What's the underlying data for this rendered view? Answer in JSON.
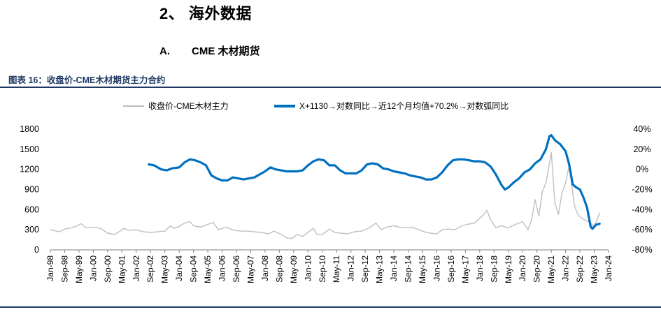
{
  "headings": {
    "section": "2、 海外数据",
    "subsection_num": "A.",
    "subsection_text": "CME 木材期货",
    "figure_title": "图表 16：收盘价-CME木材期货主力合约"
  },
  "colors": {
    "price_line": "#bfbfbf",
    "transform_line": "#0070c0",
    "axis": "#7f7f7f",
    "title_navy": "#1f3864"
  },
  "chart_data": {
    "type": "line",
    "x_type": "date",
    "x_range": [
      "1998-01",
      "2024-01"
    ],
    "x_ticks": [
      "Jan-98",
      "Sep-98",
      "May-99",
      "Jan-00",
      "Sep-00",
      "May-01",
      "Jan-02",
      "Sep-02",
      "May-03",
      "Jan-04",
      "Sep-04",
      "May-05",
      "Jan-06",
      "Sep-06",
      "May-07",
      "Jan-08",
      "Sep-08",
      "May-09",
      "Jan-10",
      "Sep-10",
      "May-11",
      "Jan-12",
      "Sep-12",
      "May-13",
      "Jan-14",
      "Sep-14",
      "May-15",
      "Jan-16",
      "Sep-16",
      "May-17",
      "Jan-18",
      "Sep-18",
      "May-19",
      "Jan-20",
      "Sep-20",
      "May-21",
      "Jan-22",
      "Sep-22",
      "May-23",
      "Jan-24"
    ],
    "y_left": {
      "ticks": [
        0,
        300,
        600,
        900,
        1200,
        1500,
        1800
      ],
      "range": [
        0,
        1800
      ]
    },
    "y_right": {
      "ticks": [
        "-80%",
        "-60%",
        "-40%",
        "-20%",
        "0%",
        "20%",
        "40%"
      ],
      "range": [
        -80,
        40
      ],
      "unit": "%"
    },
    "legend": [
      "收盘价-CME木材主力",
      "X+1130→对数同比→近12个月均值+70.2%→对数弧同比"
    ],
    "series": [
      {
        "name": "收盘价-CME木材主力",
        "axis": "left",
        "points": [
          [
            "1998-01",
            300
          ],
          [
            "1998-06",
            270
          ],
          [
            "1998-09",
            310
          ],
          [
            "1999-01",
            330
          ],
          [
            "1999-04",
            360
          ],
          [
            "1999-06",
            390
          ],
          [
            "1999-09",
            330
          ],
          [
            "2000-01",
            340
          ],
          [
            "2000-05",
            320
          ],
          [
            "2000-09",
            250
          ],
          [
            "2001-01",
            230
          ],
          [
            "2001-04",
            280
          ],
          [
            "2001-06",
            320
          ],
          [
            "2001-09",
            290
          ],
          [
            "2002-01",
            300
          ],
          [
            "2002-05",
            270
          ],
          [
            "2002-09",
            260
          ],
          [
            "2003-01",
            270
          ],
          [
            "2003-05",
            280
          ],
          [
            "2003-08",
            360
          ],
          [
            "2003-10",
            320
          ],
          [
            "2004-01",
            350
          ],
          [
            "2004-04",
            400
          ],
          [
            "2004-07",
            420
          ],
          [
            "2004-09",
            360
          ],
          [
            "2005-01",
            340
          ],
          [
            "2005-05",
            380
          ],
          [
            "2005-08",
            410
          ],
          [
            "2005-11",
            300
          ],
          [
            "2006-03",
            340
          ],
          [
            "2006-07",
            300
          ],
          [
            "2006-11",
            280
          ],
          [
            "2007-03",
            280
          ],
          [
            "2007-07",
            270
          ],
          [
            "2007-11",
            260
          ],
          [
            "2008-03",
            240
          ],
          [
            "2008-06",
            280
          ],
          [
            "2008-10",
            230
          ],
          [
            "2009-01",
            180
          ],
          [
            "2009-04",
            170
          ],
          [
            "2009-07",
            230
          ],
          [
            "2009-10",
            200
          ],
          [
            "2010-01",
            260
          ],
          [
            "2010-04",
            320
          ],
          [
            "2010-06",
            230
          ],
          [
            "2010-09",
            230
          ],
          [
            "2011-01",
            310
          ],
          [
            "2011-04",
            260
          ],
          [
            "2011-07",
            250
          ],
          [
            "2011-11",
            240
          ],
          [
            "2012-03",
            270
          ],
          [
            "2012-07",
            280
          ],
          [
            "2012-10",
            310
          ],
          [
            "2013-01",
            360
          ],
          [
            "2013-03",
            400
          ],
          [
            "2013-06",
            300
          ],
          [
            "2013-09",
            340
          ],
          [
            "2014-01",
            360
          ],
          [
            "2014-04",
            340
          ],
          [
            "2014-08",
            330
          ],
          [
            "2014-11",
            340
          ],
          [
            "2015-03",
            300
          ],
          [
            "2015-06",
            270
          ],
          [
            "2015-09",
            250
          ],
          [
            "2016-01",
            240
          ],
          [
            "2016-04",
            300
          ],
          [
            "2016-08",
            310
          ],
          [
            "2016-11",
            300
          ],
          [
            "2017-03",
            360
          ],
          [
            "2017-06",
            380
          ],
          [
            "2017-10",
            400
          ],
          [
            "2018-01",
            470
          ],
          [
            "2018-03",
            520
          ],
          [
            "2018-05",
            590
          ],
          [
            "2018-07",
            450
          ],
          [
            "2018-10",
            330
          ],
          [
            "2019-01",
            360
          ],
          [
            "2019-05",
            330
          ],
          [
            "2019-09",
            380
          ],
          [
            "2020-01",
            420
          ],
          [
            "2020-04",
            300
          ],
          [
            "2020-06",
            450
          ],
          [
            "2020-08",
            750
          ],
          [
            "2020-10",
            500
          ],
          [
            "2020-12",
            870
          ],
          [
            "2021-02",
            1000
          ],
          [
            "2021-05",
            1450
          ],
          [
            "2021-07",
            700
          ],
          [
            "2021-09",
            530
          ],
          [
            "2021-11",
            850
          ],
          [
            "2022-01",
            1000
          ],
          [
            "2022-03",
            1250
          ],
          [
            "2022-06",
            650
          ],
          [
            "2022-08",
            520
          ],
          [
            "2022-10",
            470
          ],
          [
            "2023-01",
            430
          ],
          [
            "2023-03",
            400
          ],
          [
            "2023-05",
            350
          ],
          [
            "2023-08",
            550
          ]
        ]
      },
      {
        "name": "X+1130→对数同比→近12个月均值+70.2%→对数弧同比",
        "axis": "right",
        "points": [
          [
            "2002-08",
            5
          ],
          [
            "2002-11",
            4
          ],
          [
            "2003-03",
            0
          ],
          [
            "2003-06",
            -1
          ],
          [
            "2003-09",
            1
          ],
          [
            "2004-01",
            2
          ],
          [
            "2004-04",
            7
          ],
          [
            "2004-07",
            10
          ],
          [
            "2004-10",
            9
          ],
          [
            "2005-01",
            7
          ],
          [
            "2005-04",
            4
          ],
          [
            "2005-07",
            -6
          ],
          [
            "2005-10",
            -9
          ],
          [
            "2006-01",
            -11
          ],
          [
            "2006-04",
            -11
          ],
          [
            "2006-07",
            -8
          ],
          [
            "2006-10",
            -9
          ],
          [
            "2007-01",
            -10
          ],
          [
            "2007-04",
            -9
          ],
          [
            "2007-07",
            -8
          ],
          [
            "2007-10",
            -5
          ],
          [
            "2008-01",
            -2
          ],
          [
            "2008-04",
            2
          ],
          [
            "2008-07",
            0
          ],
          [
            "2008-10",
            -1
          ],
          [
            "2009-01",
            -2
          ],
          [
            "2009-04",
            -2
          ],
          [
            "2009-07",
            -2
          ],
          [
            "2009-10",
            -1
          ],
          [
            "2010-01",
            4
          ],
          [
            "2010-04",
            8
          ],
          [
            "2010-07",
            10
          ],
          [
            "2010-10",
            9
          ],
          [
            "2011-01",
            4
          ],
          [
            "2011-04",
            4
          ],
          [
            "2011-07",
            -1
          ],
          [
            "2011-10",
            -4
          ],
          [
            "2012-01",
            -4
          ],
          [
            "2012-04",
            -4
          ],
          [
            "2012-07",
            -1
          ],
          [
            "2012-10",
            5
          ],
          [
            "2013-01",
            6
          ],
          [
            "2013-04",
            5
          ],
          [
            "2013-07",
            1
          ],
          [
            "2013-10",
            0
          ],
          [
            "2014-01",
            -2
          ],
          [
            "2014-04",
            -3
          ],
          [
            "2014-07",
            -4
          ],
          [
            "2014-10",
            -6
          ],
          [
            "2015-01",
            -7
          ],
          [
            "2015-04",
            -8
          ],
          [
            "2015-07",
            -10
          ],
          [
            "2015-10",
            -10
          ],
          [
            "2016-01",
            -8
          ],
          [
            "2016-04",
            -3
          ],
          [
            "2016-07",
            4
          ],
          [
            "2016-10",
            9
          ],
          [
            "2017-01",
            10
          ],
          [
            "2017-04",
            10
          ],
          [
            "2017-07",
            9
          ],
          [
            "2017-10",
            8
          ],
          [
            "2018-01",
            8
          ],
          [
            "2018-04",
            7
          ],
          [
            "2018-07",
            3
          ],
          [
            "2018-10",
            -5
          ],
          [
            "2019-01",
            -15
          ],
          [
            "2019-03",
            -20
          ],
          [
            "2019-05",
            -18
          ],
          [
            "2019-08",
            -13
          ],
          [
            "2019-11",
            -9
          ],
          [
            "2020-02",
            -3
          ],
          [
            "2020-05",
            0
          ],
          [
            "2020-08",
            6
          ],
          [
            "2020-11",
            10
          ],
          [
            "2021-02",
            20
          ],
          [
            "2021-04",
            33
          ],
          [
            "2021-05",
            34
          ],
          [
            "2021-07",
            29
          ],
          [
            "2021-10",
            25
          ],
          [
            "2022-01",
            18
          ],
          [
            "2022-03",
            5
          ],
          [
            "2022-05",
            -15
          ],
          [
            "2022-07",
            -18
          ],
          [
            "2022-09",
            -20
          ],
          [
            "2022-11",
            -28
          ],
          [
            "2023-01",
            -38
          ],
          [
            "2023-03",
            -57
          ],
          [
            "2023-04",
            -59
          ],
          [
            "2023-06",
            -55
          ],
          [
            "2023-08",
            -54
          ]
        ]
      }
    ]
  }
}
